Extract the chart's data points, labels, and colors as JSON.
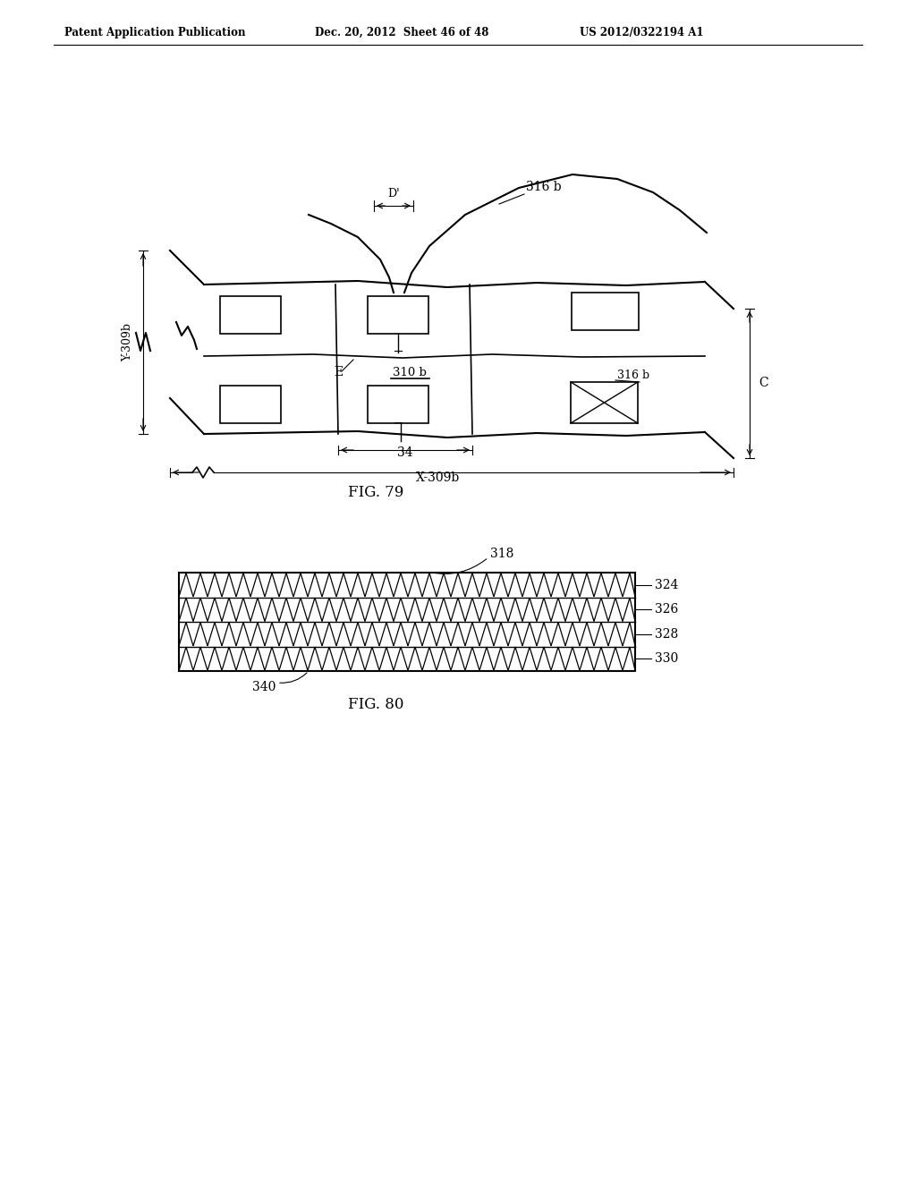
{
  "header_left": "Patent Application Publication",
  "header_mid": "Dec. 20, 2012  Sheet 46 of 48",
  "header_right": "US 2012/0322194 A1",
  "fig79_label": "FIG. 79",
  "fig80_label": "FIG. 80",
  "bg_color": "#ffffff",
  "lc": "#000000"
}
